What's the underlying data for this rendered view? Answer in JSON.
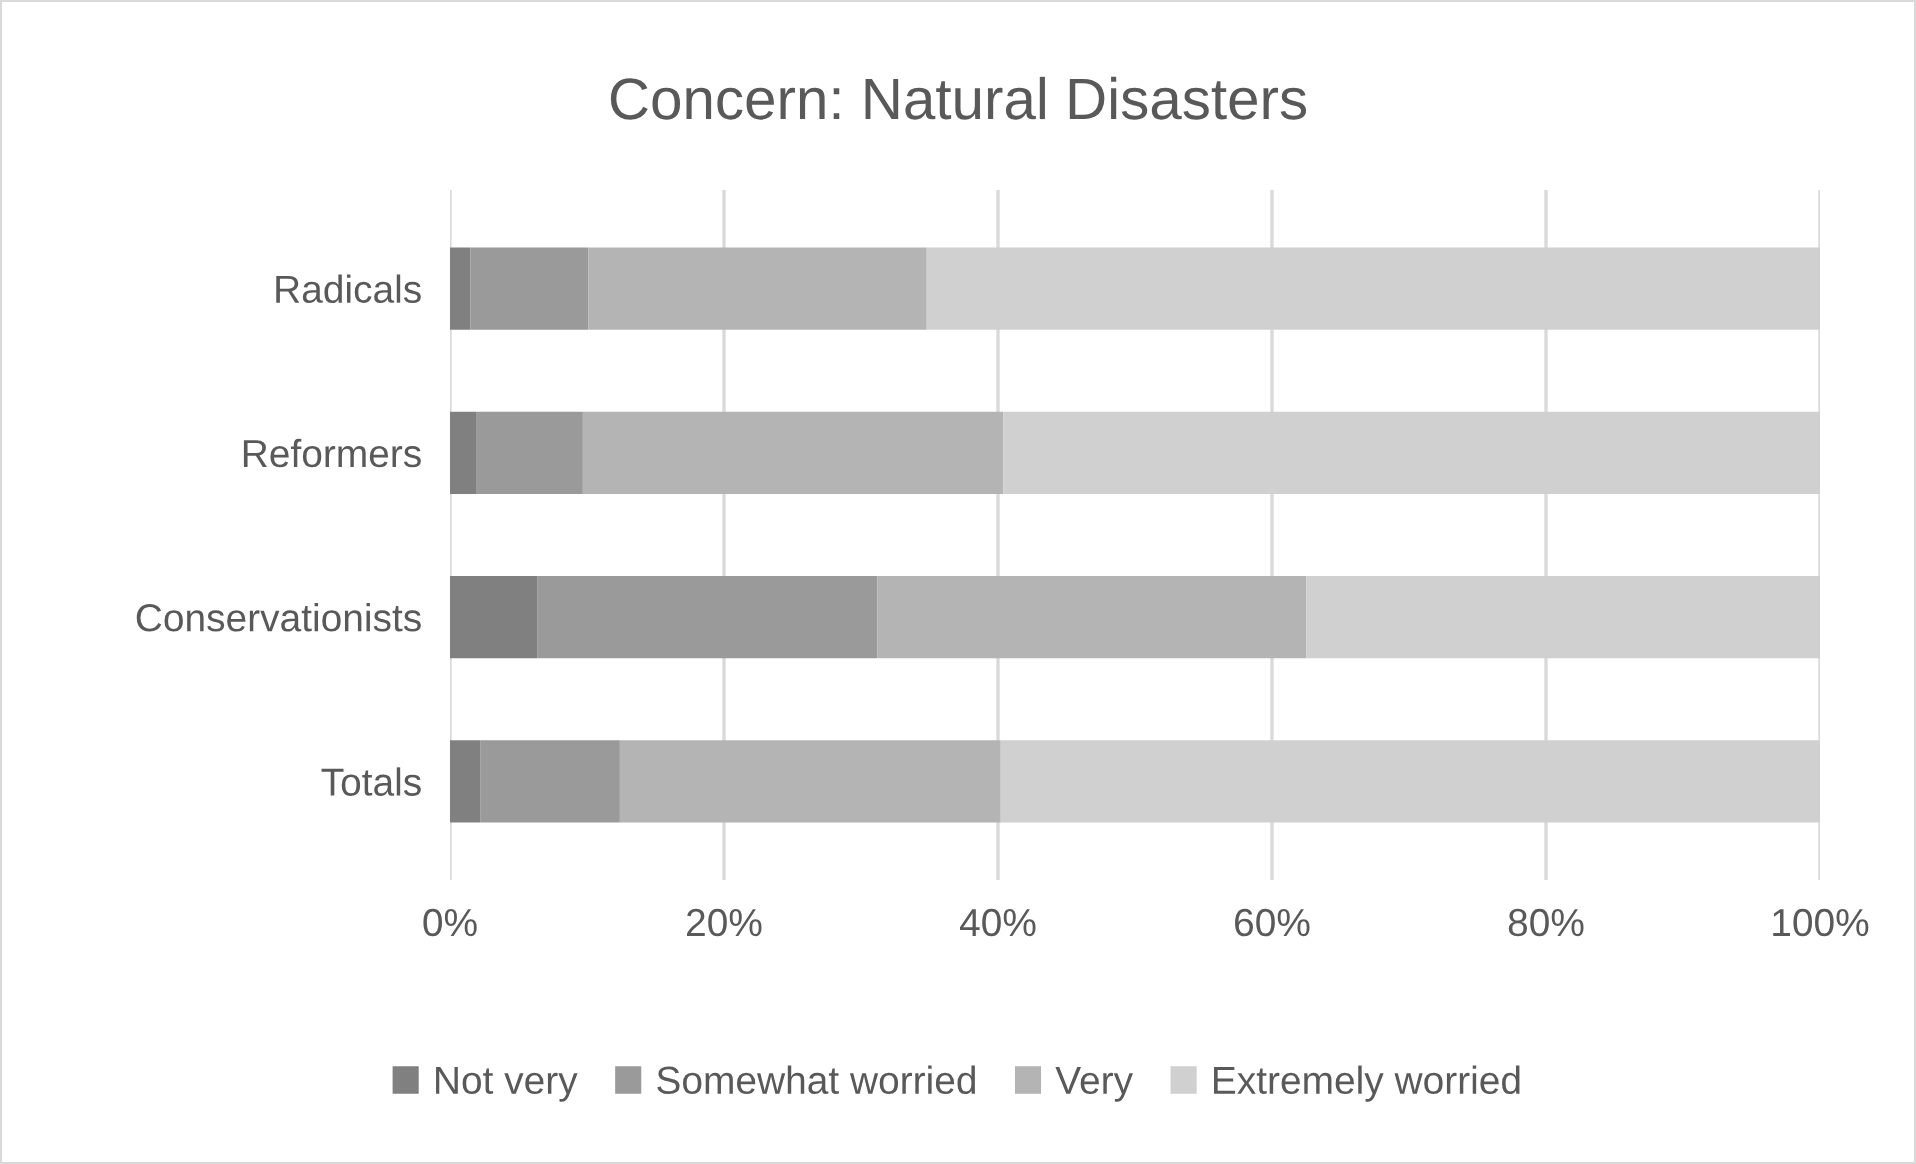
{
  "chart_data": {
    "type": "bar",
    "title": "Concern: Natural Disasters",
    "orientation": "horizontal",
    "stacked": true,
    "categories": [
      "Radicals",
      "Reformers",
      "Conservationists",
      "Totals"
    ],
    "series": [
      {
        "name": "Not very",
        "color": "#808080",
        "values": [
          1.5,
          1.9,
          6.4,
          2.2
        ]
      },
      {
        "name": "Somewhat worried",
        "color": "#9a9a9a",
        "values": [
          8.6,
          7.8,
          24.8,
          10.2
        ]
      },
      {
        "name": "Very",
        "color": "#b4b4b4",
        "values": [
          24.7,
          30.7,
          31.3,
          27.8
        ]
      },
      {
        "name": "Extremely worried",
        "color": "#d0d0d0",
        "values": [
          65.2,
          59.6,
          37.5,
          59.8
        ]
      }
    ],
    "xlim": [
      0,
      100
    ],
    "xticks": [
      {
        "value": 0,
        "label": "0%"
      },
      {
        "value": 20,
        "label": "20%"
      },
      {
        "value": 40,
        "label": "40%"
      },
      {
        "value": 60,
        "label": "60%"
      },
      {
        "value": 80,
        "label": "80%"
      },
      {
        "value": 100,
        "label": "100%"
      }
    ],
    "grid": "x",
    "legend": "bottom"
  }
}
